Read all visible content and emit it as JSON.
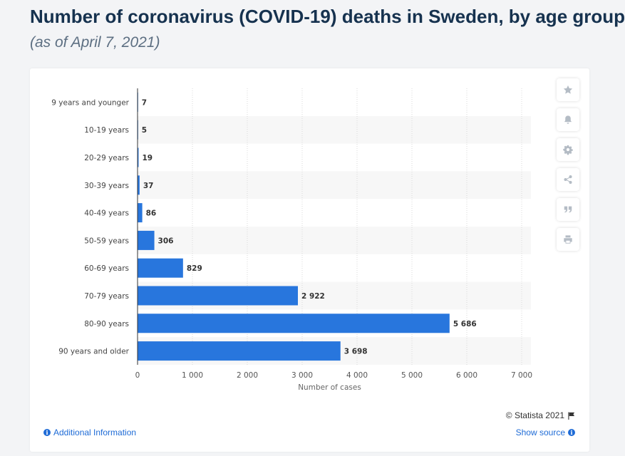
{
  "header": {
    "title": "Number of coronavirus (COVID-19) deaths in Sweden, by age group",
    "subtitle": "(as of April 7, 2021)"
  },
  "toolbar": {
    "icons": [
      "star-icon",
      "bell-icon",
      "gear-icon",
      "share-icon",
      "quote-icon",
      "print-icon"
    ]
  },
  "footer": {
    "copyright": "© Statista 2021",
    "additional_info": "Additional Information",
    "show_source": "Show source"
  },
  "colors": {
    "bar": "#2876dd",
    "title": "#16324f",
    "band": "#f7f7f7",
    "grid": "#d9d9d9",
    "link": "#1e6bd6"
  },
  "chart_data": {
    "type": "bar",
    "orientation": "horizontal",
    "categories": [
      "9 years and younger",
      "10-19 years",
      "20-29 years",
      "30-39 years",
      "40-49 years",
      "50-59 years",
      "60-69 years",
      "70-79 years",
      "80-90 years",
      "90 years and older"
    ],
    "values": [
      7,
      5,
      19,
      37,
      86,
      306,
      829,
      2922,
      5686,
      3698
    ],
    "value_labels": [
      "7",
      "5",
      "19",
      "37",
      "86",
      "306",
      "829",
      "2 922",
      "5 686",
      "3 698"
    ],
    "xlabel": "Number of cases",
    "xlim": [
      0,
      7000
    ],
    "xticks": [
      0,
      1000,
      2000,
      3000,
      4000,
      5000,
      6000,
      7000
    ],
    "xtick_labels": [
      "0",
      "1 000",
      "2 000",
      "3 000",
      "4 000",
      "5 000",
      "6 000",
      "7 000"
    ],
    "grid": true,
    "legend": "none"
  }
}
